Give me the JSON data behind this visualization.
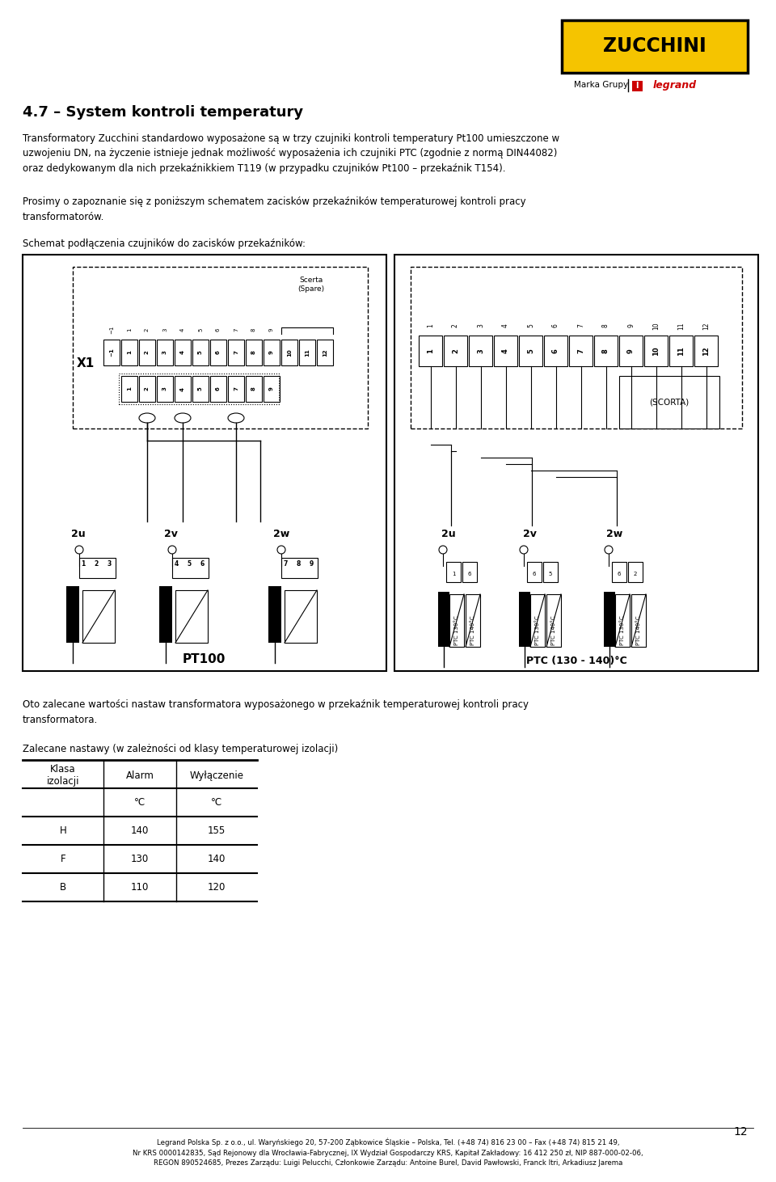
{
  "title_section": "4.7 – System kontroli temperatury",
  "para1": "Transformatory Zucchini standardowo wyposażone są w trzy czujniki kontroli temperatury Pt100 umieszczone w\nuzwojeniu DN, na życzenie istnieje jednak możliwość wyposażenia ich czujniki PTC (zgodnie z normą DIN44082)\noraz dedykowanym dla nich przekaźnikkiem T119 (w przypadku czujników Pt100 – przekaźnik T154).",
  "para2": "Prosimy o zapoznanie się z poniższym schematem zacisków przekaźników temperaturowej kontroli pracy\ntransformatorów.",
  "schema_label": "Schemat podłączenia czujników do zacisków przekaźników:",
  "para3": "Oto zalecane wartości nastaw transformatora wyposażonego w przekaźnik temperaturowej kontroli pracy\ntransformatora.",
  "para4": "Zalecane nastawy (w zależności od klasy temperaturowej izolacji)",
  "table_headers": [
    "Klasa\nizolacji",
    "Alarm",
    "Wyłączenie"
  ],
  "table_subheaders": [
    "",
    "°C",
    "°C"
  ],
  "table_data": [
    [
      "H",
      "140",
      "155"
    ],
    [
      "F",
      "130",
      "140"
    ],
    [
      "B",
      "110",
      "120"
    ]
  ],
  "footer_text": "Legrand Polska Sp. z o.o., ul. Waryńskiego 20, 57-200 Ząbkowice Śląskie – Polska, Tel. (+48 74) 816 23 00 – Fax (+48 74) 815 21 49,\nNr KRS 0000142835, Sąd Rejonowy dla Wrocławia-Fabrycznej, IX Wydział Gospodarczy KRS, Kapitał Zakładowy: 16 412 250 zł, NIP 887-000-02-06,\nREGON 890524685, Prezes Zarządu: Luigi Pelucchi, Członkowie Zarządu: Antoine Burel, David Pawłowski, Franck Itri, Arkadiusz Jarema",
  "page_number": "12",
  "bg_color": "#ffffff",
  "text_color": "#000000"
}
